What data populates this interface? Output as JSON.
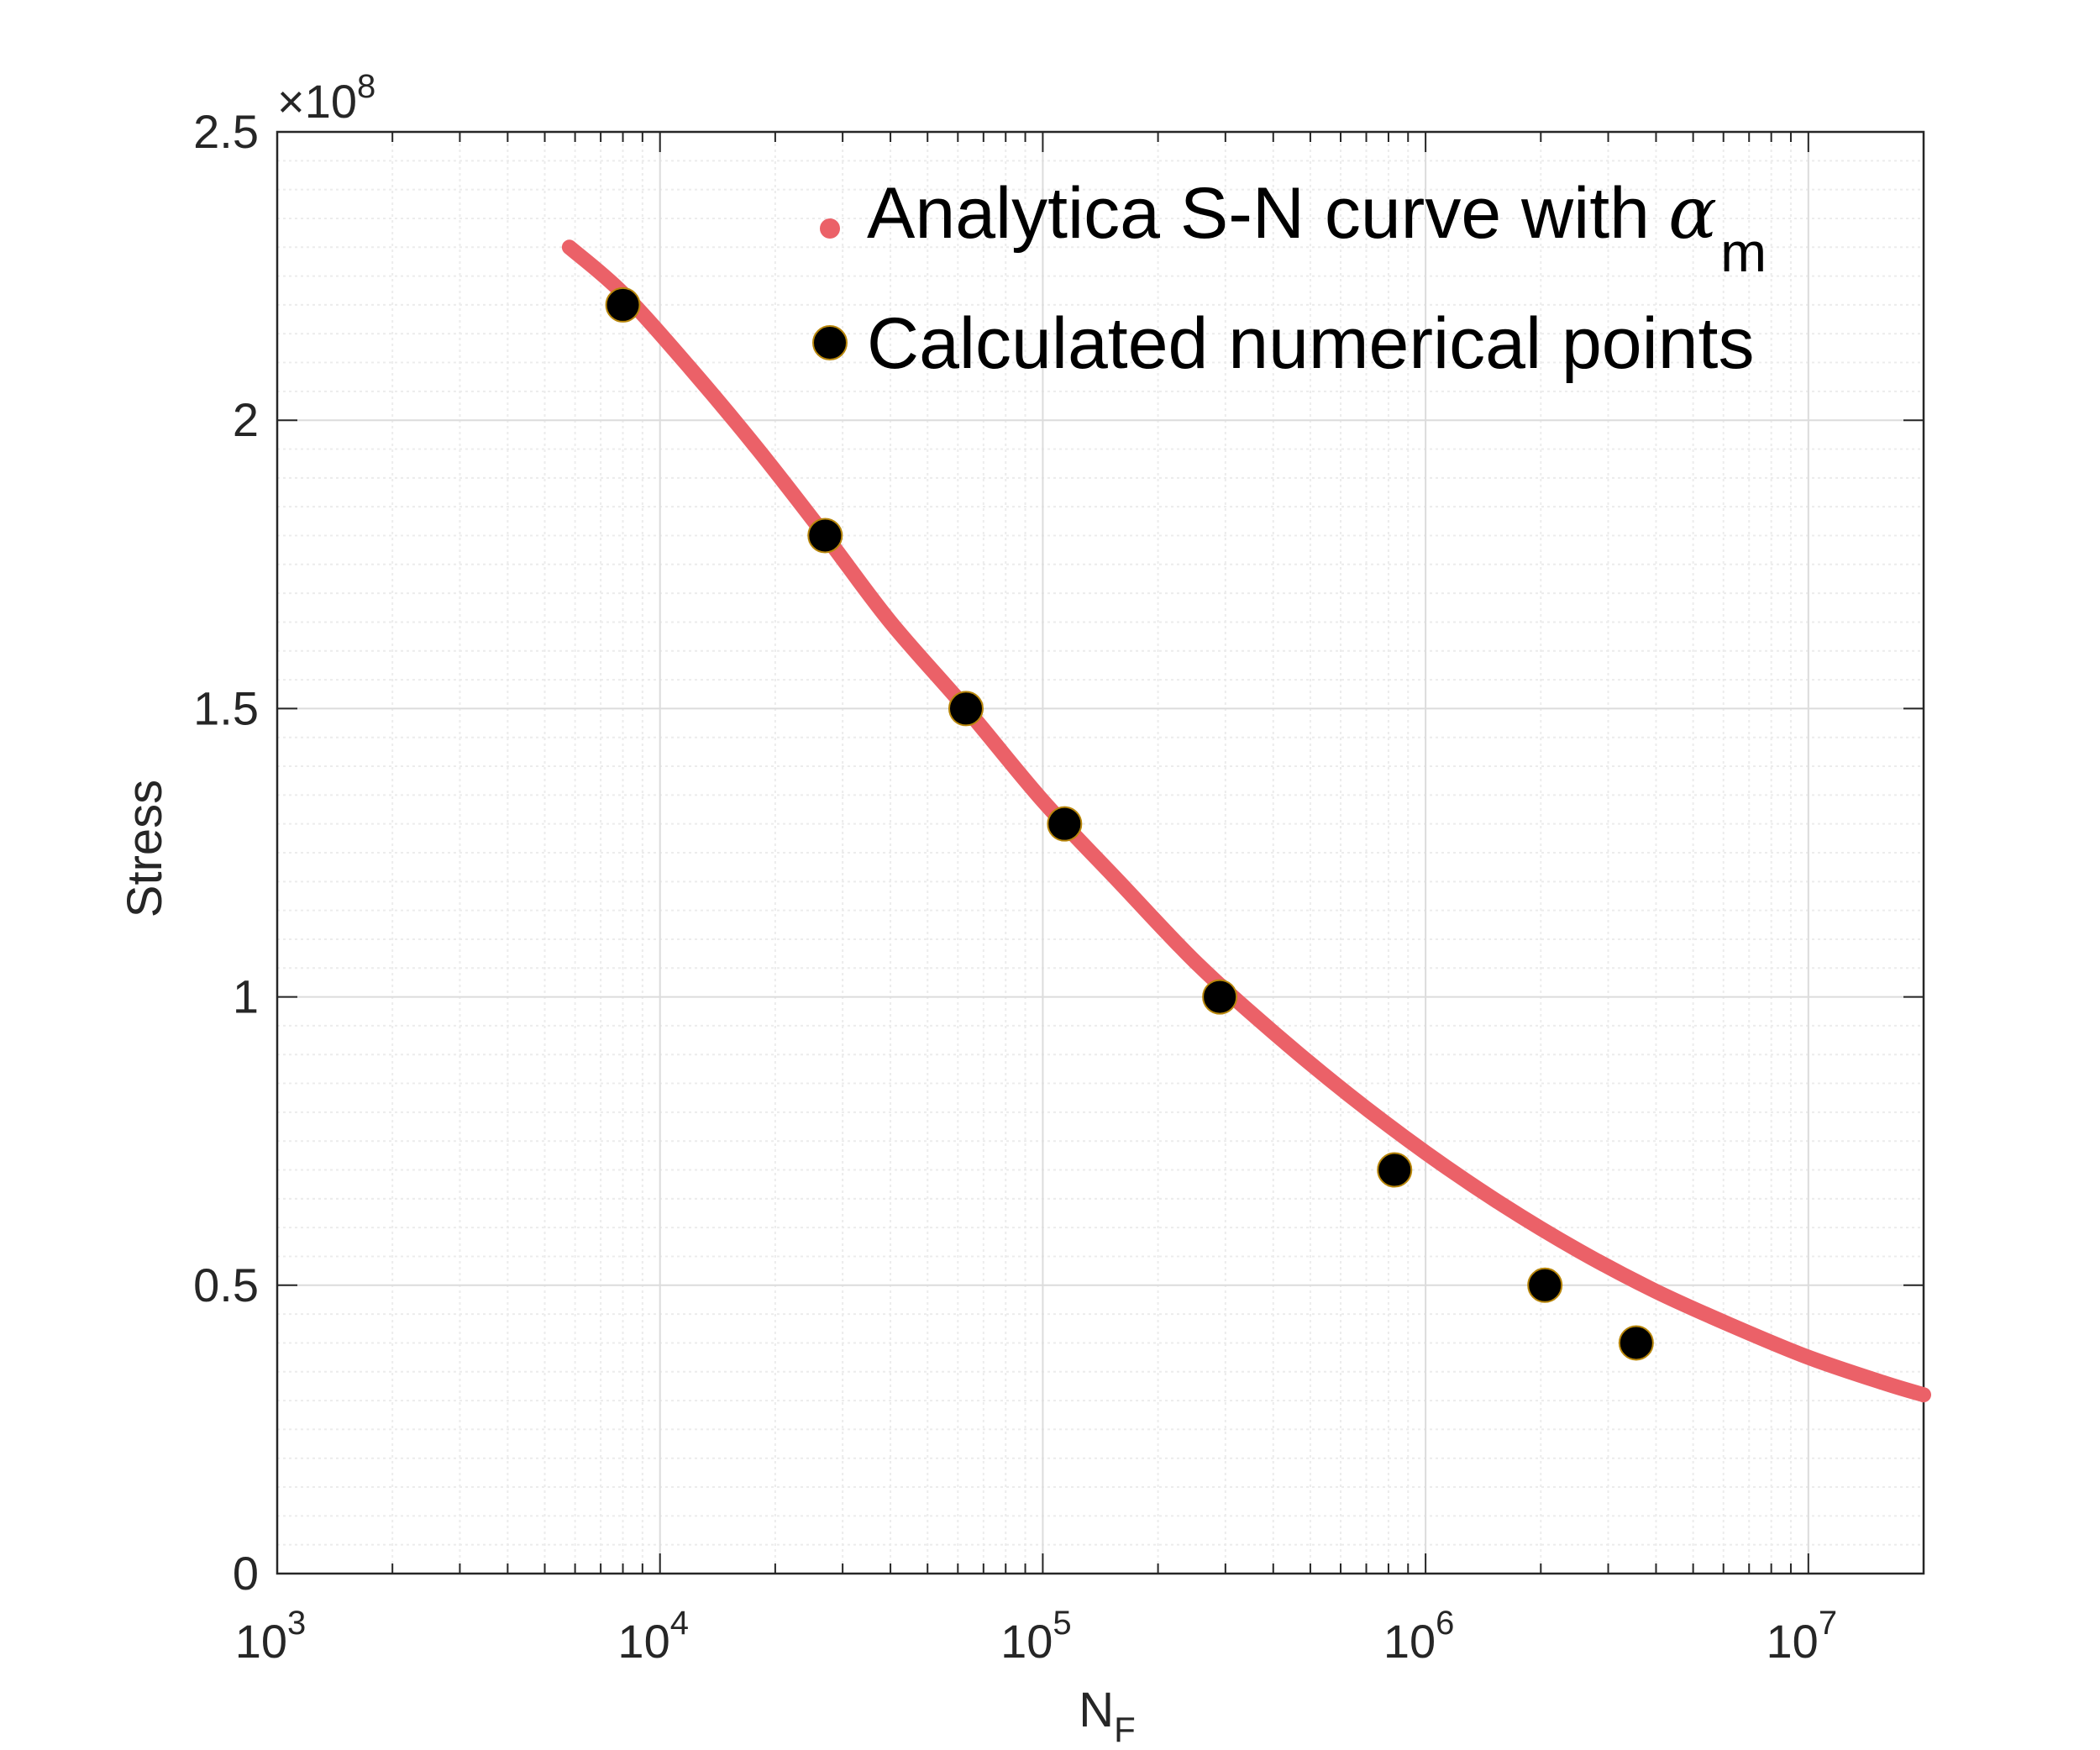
{
  "chart_data": {
    "type": "line",
    "xscale": "log",
    "xlim": [
      1000,
      20000000
    ],
    "ylim": [
      0,
      250000000
    ],
    "xlabel": {
      "main": "N",
      "sub": "F"
    },
    "ylabel": "Stress",
    "y_exponent_label": {
      "prefix": "×10",
      "exp": "8"
    },
    "grid": true,
    "legend_position": "top-right",
    "x_ticks": [
      {
        "base": "10",
        "exp": "3",
        "value": 1000
      },
      {
        "base": "10",
        "exp": "4",
        "value": 10000
      },
      {
        "base": "10",
        "exp": "5",
        "value": 100000
      },
      {
        "base": "10",
        "exp": "6",
        "value": 1000000
      },
      {
        "base": "10",
        "exp": "7",
        "value": 10000000
      }
    ],
    "y_ticks": [
      {
        "label": "0",
        "value": 0
      },
      {
        "label": "0.5",
        "value": 50000000
      },
      {
        "label": "1",
        "value": 100000000
      },
      {
        "label": "1.5",
        "value": 150000000
      },
      {
        "label": "2",
        "value": 200000000
      },
      {
        "label": "2.5",
        "value": 250000000
      }
    ],
    "series": [
      {
        "name": "Analytica S-N curve with",
        "name_symbol": "α",
        "name_subscript": "m",
        "kind": "line",
        "color": "#EB6168",
        "x": [
          5800,
          8000,
          12000,
          18000,
          27000,
          40000,
          63000,
          100000,
          158000,
          251000,
          398000,
          631000,
          1000000,
          1585000,
          2512000,
          3981000,
          6310000,
          10000000,
          15850000,
          20000000
        ],
        "y": [
          230000000,
          222000000,
          209000000,
          195000000,
          180000000,
          165000000,
          150000000,
          134000000,
          120000000,
          106000000,
          94000000,
          83000000,
          73000000,
          64000000,
          56000000,
          49000000,
          43000000,
          37500000,
          33000000,
          31000000
        ]
      },
      {
        "name": "Calculated numerical points",
        "kind": "scatter",
        "color": "#000000",
        "edge_color": "#B8860B",
        "x": [
          8000,
          27000,
          63000,
          114000,
          290000,
          830000,
          2050000,
          3550000
        ],
        "y": [
          220000000,
          180000000,
          150000000,
          130000000,
          100000000,
          70000000,
          50000000,
          40000000
        ]
      }
    ]
  }
}
